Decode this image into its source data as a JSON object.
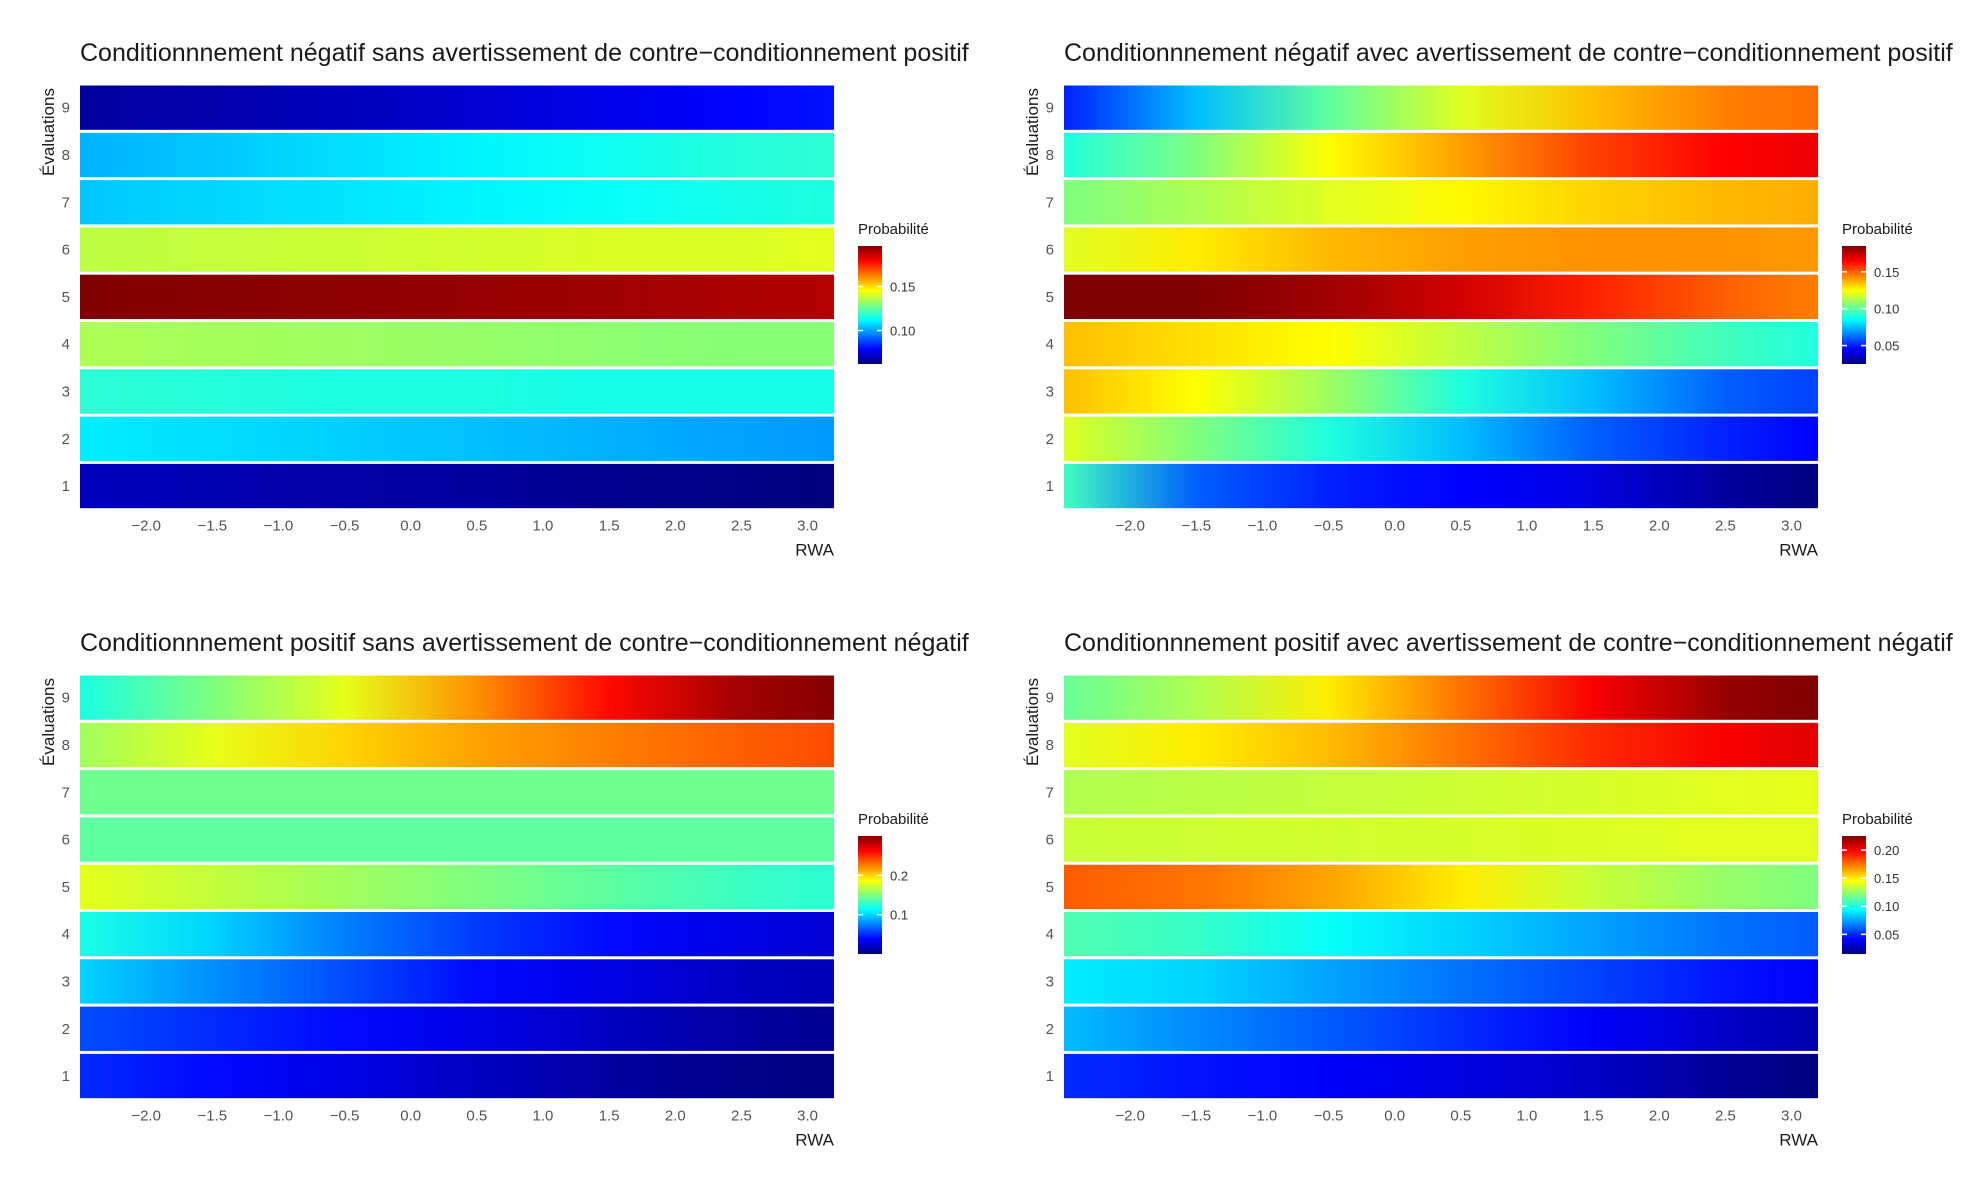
{
  "chart_data": [
    {
      "type": "heatmap",
      "title": "Conditionnnement négatif sans avertissement de contre−conditionnement positif",
      "xlabel": "RWA",
      "ylabel": "Évaluations",
      "x_ticks": [
        "−2.0",
        "−1.5",
        "−1.0",
        "−0.5",
        "0.0",
        "0.5",
        "1.0",
        "1.5",
        "2.0",
        "2.5",
        "3.0"
      ],
      "y_categories": [
        "1",
        "2",
        "3",
        "4",
        "5",
        "6",
        "7",
        "8",
        "9"
      ],
      "x": [
        -2.5,
        -1.5,
        -0.5,
        0.5,
        1.5,
        2.5,
        3.2
      ],
      "xlim": [
        -2.5,
        3.2
      ],
      "legend": {
        "title": "Probabilité",
        "ticks": [
          "0.10",
          "0.15"
        ],
        "tick_values": [
          0.1,
          0.15
        ],
        "range": [
          0.062,
          0.196
        ]
      },
      "rows": [
        [
          0.07,
          0.069,
          0.067,
          0.066,
          0.064,
          0.063,
          0.062
        ],
        [
          0.11,
          0.108,
          0.106,
          0.104,
          0.102,
          0.1,
          0.099
        ],
        [
          0.118,
          0.117,
          0.116,
          0.116,
          0.115,
          0.115,
          0.115
        ],
        [
          0.135,
          0.134,
          0.133,
          0.132,
          0.131,
          0.13,
          0.13
        ],
        [
          0.196,
          0.195,
          0.194,
          0.193,
          0.192,
          0.19,
          0.189
        ],
        [
          0.137,
          0.138,
          0.139,
          0.14,
          0.141,
          0.141,
          0.142
        ],
        [
          0.105,
          0.107,
          0.109,
          0.111,
          0.113,
          0.115,
          0.116
        ],
        [
          0.102,
          0.105,
          0.108,
          0.111,
          0.114,
          0.117,
          0.118
        ],
        [
          0.066,
          0.068,
          0.07,
          0.073,
          0.076,
          0.079,
          0.081
        ]
      ]
    },
    {
      "type": "heatmap",
      "title": "Conditionnnement négatif avec avertissement de contre−conditionnement positif",
      "xlabel": "RWA",
      "ylabel": "Évaluations",
      "x_ticks": [
        "−2.0",
        "−1.5",
        "−1.0",
        "−0.5",
        "0.0",
        "0.5",
        "1.0",
        "1.5",
        "2.0",
        "2.5",
        "3.0"
      ],
      "y_categories": [
        "1",
        "2",
        "3",
        "4",
        "5",
        "6",
        "7",
        "8",
        "9"
      ],
      "x": [
        -2.5,
        -1.5,
        -0.5,
        0.5,
        1.5,
        2.5,
        3.2
      ],
      "xlim": [
        -2.5,
        3.2
      ],
      "legend": {
        "title": "Probabilité",
        "ticks": [
          "0.05",
          "0.10",
          "0.15"
        ],
        "tick_values": [
          0.05,
          0.1,
          0.15
        ],
        "range": [
          0.025,
          0.185
        ]
      },
      "rows": [
        [
          0.095,
          0.06,
          0.05,
          0.045,
          0.04,
          0.03,
          0.025
        ],
        [
          0.12,
          0.105,
          0.09,
          0.075,
          0.06,
          0.05,
          0.045
        ],
        [
          0.135,
          0.125,
          0.11,
          0.09,
          0.075,
          0.06,
          0.055
        ],
        [
          0.135,
          0.13,
          0.125,
          0.115,
          0.105,
          0.095,
          0.09
        ],
        [
          0.185,
          0.185,
          0.18,
          0.172,
          0.16,
          0.15,
          0.145
        ],
        [
          0.12,
          0.128,
          0.136,
          0.14,
          0.142,
          0.142,
          0.141
        ],
        [
          0.105,
          0.112,
          0.12,
          0.126,
          0.132,
          0.136,
          0.138
        ],
        [
          0.09,
          0.105,
          0.125,
          0.14,
          0.155,
          0.165,
          0.168
        ],
        [
          0.05,
          0.075,
          0.1,
          0.12,
          0.135,
          0.145,
          0.148
        ]
      ]
    },
    {
      "type": "heatmap",
      "title": "Conditionnnement positif sans avertissement de contre−conditionnement négatif",
      "xlabel": "RWA",
      "ylabel": "Évaluations",
      "x_ticks": [
        "−2.0",
        "−1.5",
        "−1.0",
        "−0.5",
        "0.0",
        "0.5",
        "1.0",
        "1.5",
        "2.0",
        "2.5",
        "3.0"
      ],
      "y_categories": [
        "1",
        "2",
        "3",
        "4",
        "5",
        "6",
        "7",
        "8",
        "9"
      ],
      "x": [
        -2.5,
        -1.5,
        -0.5,
        0.5,
        1.5,
        2.5,
        3.2
      ],
      "xlim": [
        -2.5,
        3.2
      ],
      "legend": {
        "title": "Probabilité",
        "ticks": [
          "0.1",
          "0.2"
        ],
        "tick_values": [
          0.1,
          0.2
        ],
        "range": [
          0.0,
          0.3
        ]
      },
      "rows": [
        [
          0.05,
          0.04,
          0.03,
          0.02,
          0.01,
          0.003,
          0.001
        ],
        [
          0.06,
          0.05,
          0.04,
          0.03,
          0.02,
          0.01,
          0.006
        ],
        [
          0.1,
          0.08,
          0.06,
          0.04,
          0.03,
          0.02,
          0.016
        ],
        [
          0.12,
          0.1,
          0.075,
          0.055,
          0.04,
          0.03,
          0.025
        ],
        [
          0.18,
          0.17,
          0.16,
          0.15,
          0.14,
          0.13,
          0.125
        ],
        [
          0.14,
          0.14,
          0.14,
          0.14,
          0.14,
          0.14,
          0.14
        ],
        [
          0.145,
          0.145,
          0.145,
          0.145,
          0.145,
          0.145,
          0.145
        ],
        [
          0.16,
          0.18,
          0.2,
          0.215,
          0.225,
          0.235,
          0.24
        ],
        [
          0.12,
          0.15,
          0.18,
          0.22,
          0.26,
          0.29,
          0.298
        ]
      ]
    },
    {
      "type": "heatmap",
      "title": "Conditionnnement positif avec avertissement de contre−conditionnement négatif",
      "xlabel": "RWA",
      "ylabel": "Évaluations",
      "x_ticks": [
        "−2.0",
        "−1.5",
        "−1.0",
        "−0.5",
        "0.0",
        "0.5",
        "1.0",
        "1.5",
        "2.0",
        "2.5",
        "3.0"
      ],
      "y_categories": [
        "1",
        "2",
        "3",
        "4",
        "5",
        "6",
        "7",
        "8",
        "9"
      ],
      "x": [
        -2.5,
        -1.5,
        -0.5,
        0.5,
        1.5,
        2.5,
        3.2
      ],
      "xlim": [
        -2.5,
        3.2
      ],
      "legend": {
        "title": "Probabilité",
        "ticks": [
          "0.05",
          "0.10",
          "0.15",
          "0.20"
        ],
        "tick_values": [
          0.05,
          0.1,
          0.15,
          0.2
        ],
        "range": [
          0.015,
          0.225
        ]
      },
      "rows": [
        [
          0.05,
          0.045,
          0.04,
          0.035,
          0.03,
          0.02,
          0.015
        ],
        [
          0.08,
          0.07,
          0.06,
          0.05,
          0.04,
          0.03,
          0.025
        ],
        [
          0.09,
          0.085,
          0.075,
          0.065,
          0.055,
          0.045,
          0.04
        ],
        [
          0.11,
          0.105,
          0.095,
          0.085,
          0.075,
          0.065,
          0.06
        ],
        [
          0.18,
          0.175,
          0.165,
          0.15,
          0.135,
          0.125,
          0.12
        ],
        [
          0.135,
          0.136,
          0.137,
          0.138,
          0.139,
          0.14,
          0.14
        ],
        [
          0.13,
          0.132,
          0.134,
          0.136,
          0.138,
          0.14,
          0.141
        ],
        [
          0.14,
          0.15,
          0.16,
          0.175,
          0.19,
          0.2,
          0.205
        ],
        [
          0.115,
          0.13,
          0.15,
          0.175,
          0.2,
          0.22,
          0.225
        ]
      ]
    }
  ]
}
